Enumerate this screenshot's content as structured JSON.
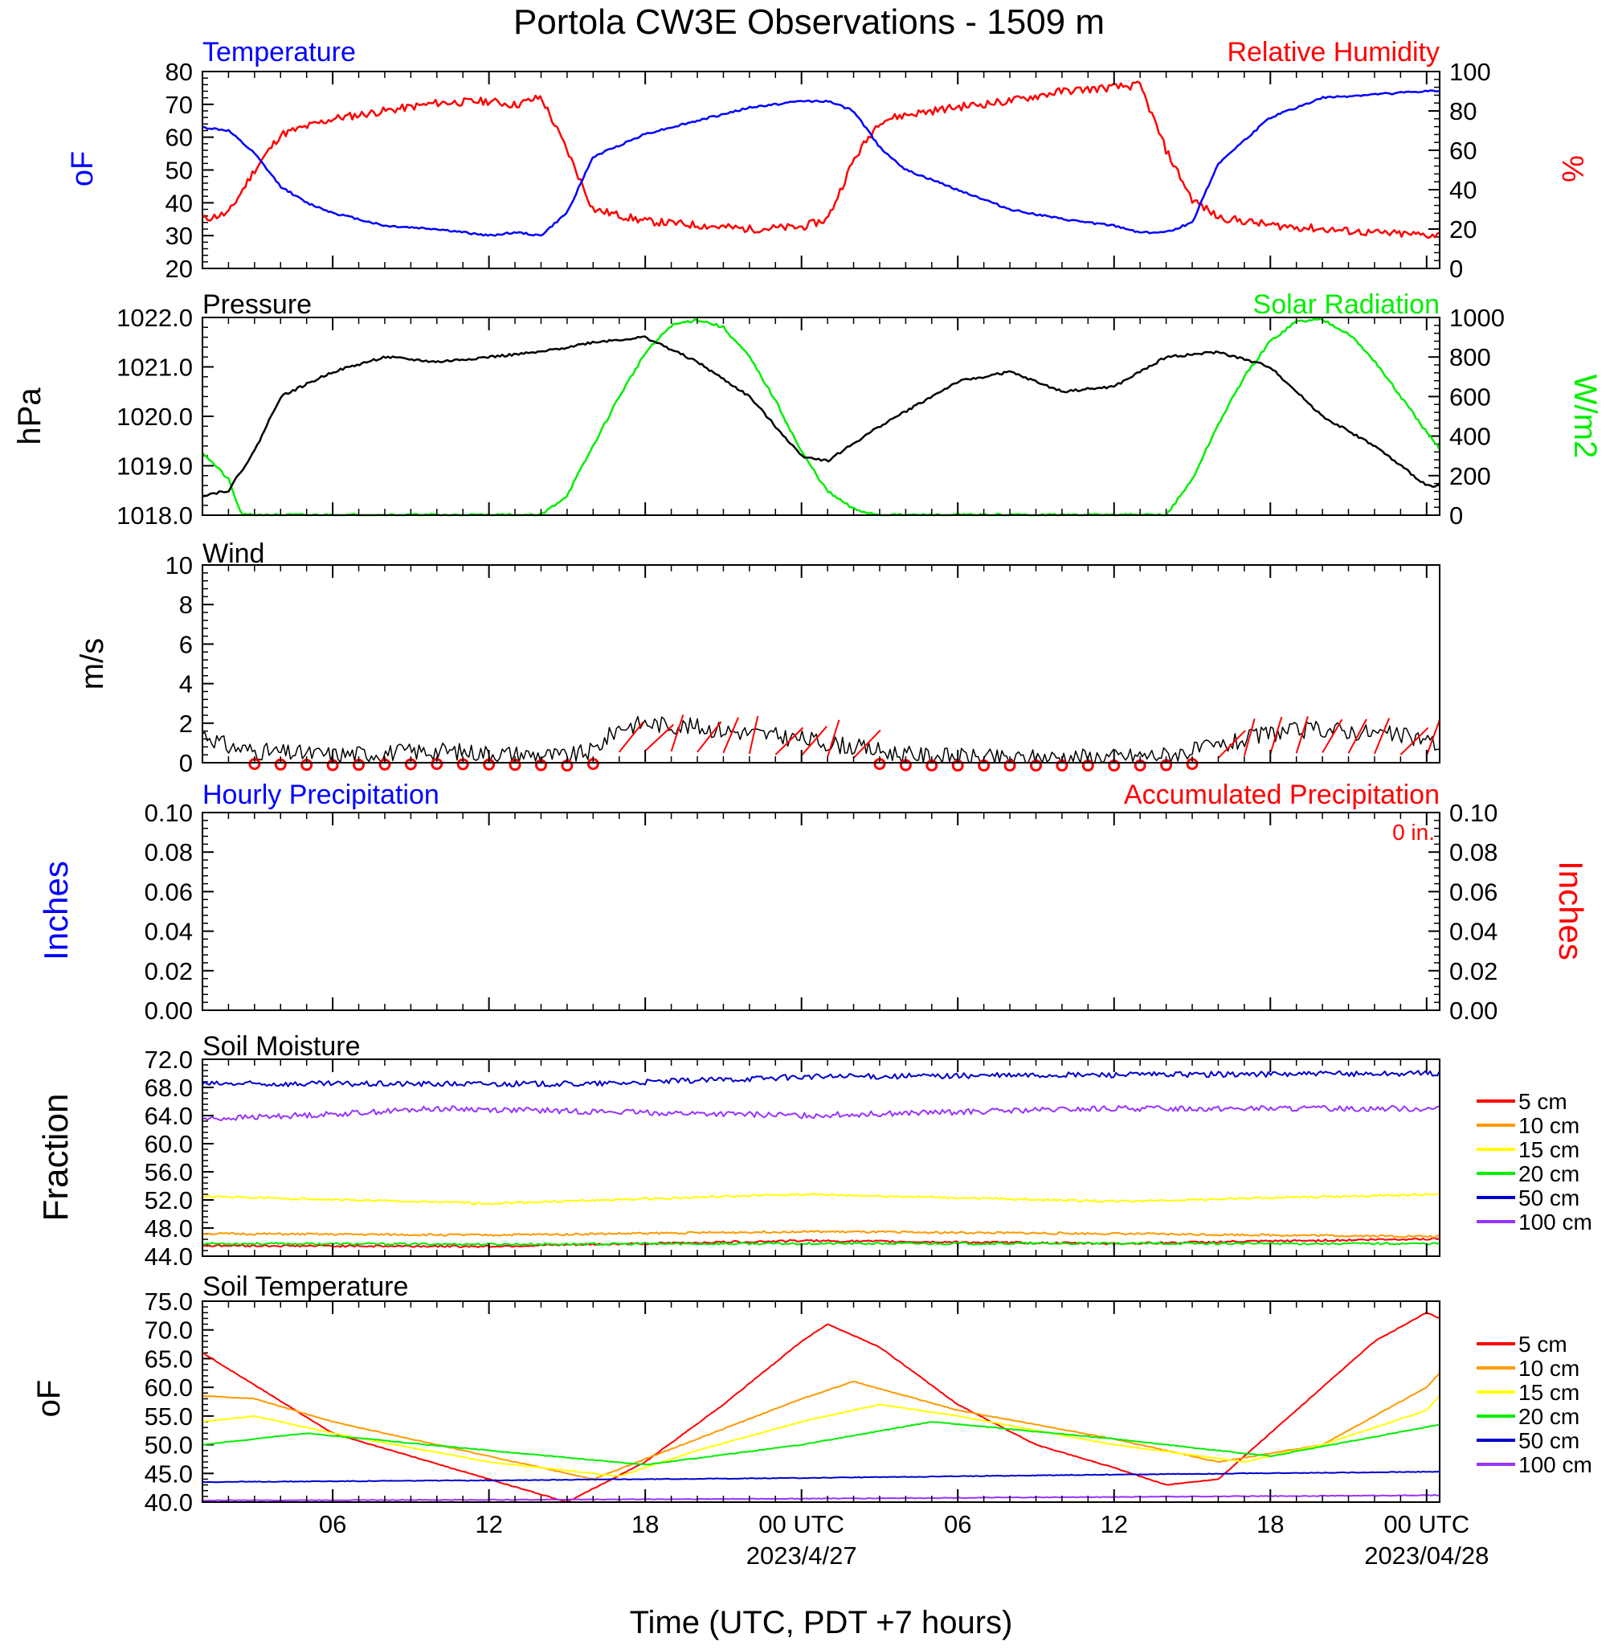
{
  "title": "Portola CW3E Observations - 1509 m",
  "xlabel": "Time (UTC, PDT +7 hours)",
  "x_ticks": [
    "06",
    "12",
    "18",
    "00 UTC",
    "06",
    "12",
    "18",
    "00 UTC"
  ],
  "x_dates": [
    "2023/4/27",
    "2023/04/28"
  ],
  "colors": {
    "temperature": "#0000ff",
    "humidity": "#ff0000",
    "pressure": "#000000",
    "solar": "#00ee00",
    "wind": "#000000",
    "barbs": "#ff0000",
    "hourly_precip": "#0000ff",
    "accum_precip": "#ff0000"
  },
  "panels": {
    "temp_rh": {
      "left_label": "Temperature",
      "right_label": "Relative Humidity",
      "left_unit": "oF",
      "right_unit": "%",
      "left_ticks": [
        "80",
        "70",
        "60",
        "50",
        "40",
        "30",
        "20"
      ],
      "right_ticks": [
        "100",
        "80",
        "60",
        "40",
        "20",
        "0"
      ]
    },
    "pressure_solar": {
      "left_label": "Pressure",
      "right_label": "Solar Radiation",
      "left_unit": "hPa",
      "right_unit": "W/m2",
      "left_ticks": [
        "1022.0",
        "1021.0",
        "1020.0",
        "1019.0",
        "1018.0"
      ],
      "right_ticks": [
        "1000",
        "800",
        "600",
        "400",
        "200",
        "0"
      ]
    },
    "wind": {
      "left_label": "Wind",
      "left_unit": "m/s",
      "left_ticks": [
        "10",
        "8",
        "6",
        "4",
        "2",
        "0"
      ]
    },
    "precip": {
      "left_label": "Hourly Precipitation",
      "right_label": "Accumulated Precipitation",
      "accum_total": "0 in.",
      "left_unit": "Inches",
      "right_unit": "Inches",
      "left_ticks": [
        "0.10",
        "0.08",
        "0.06",
        "0.04",
        "0.02",
        "0.00"
      ],
      "right_ticks": [
        "0.10",
        "0.08",
        "0.06",
        "0.04",
        "0.02",
        "0.00"
      ]
    },
    "soil_moisture": {
      "left_label": "Soil Moisture",
      "left_unit": "Fraction",
      "left_ticks": [
        "72.0",
        "68.0",
        "64.0",
        "60.0",
        "56.0",
        "52.0",
        "48.0",
        "44.0"
      ]
    },
    "soil_temp": {
      "left_label": "Soil Temperature",
      "left_unit": "oF",
      "left_ticks": [
        "75.0",
        "70.0",
        "65.0",
        "60.0",
        "55.0",
        "50.0",
        "45.0",
        "40.0"
      ]
    }
  },
  "legend": [
    {
      "label": "5 cm",
      "color": "#ff0000"
    },
    {
      "label": "10 cm",
      "color": "#ff9900"
    },
    {
      "label": "15 cm",
      "color": "#ffff00"
    },
    {
      "label": "20 cm",
      "color": "#00ee00"
    },
    {
      "label": "50 cm",
      "color": "#0000cc"
    },
    {
      "label": "100 cm",
      "color": "#9933ff"
    }
  ],
  "chart_data": {
    "type": "line",
    "title": "Portola CW3E Observations - 1509 m",
    "xlabel": "Time (UTC, PDT +7 hours)",
    "x_unit": "hours after 2023-04-26 00 UTC",
    "xlim": [
      1,
      48.5
    ],
    "grid": false,
    "subplots": [
      {
        "name": "Temperature / Relative Humidity",
        "ylim": [
          20,
          80
        ],
        "y2lim": [
          0,
          100
        ],
        "series": [
          {
            "name": "Temperature",
            "axis": "left",
            "unit": "F",
            "x": [
              1,
              2,
              3,
              4,
              5,
              6,
              8,
              10,
              12,
              13,
              14,
              15,
              16,
              18,
              20,
              22,
              24,
              25,
              26,
              27,
              28,
              30,
              32,
              34,
              36,
              37,
              38,
              39,
              40,
              42,
              44,
              46,
              48,
              48.5
            ],
            "y": [
              63,
              62,
              55,
              45,
              40,
              37,
              33,
              32,
              30,
              31,
              30,
              37,
              54,
              61,
              65,
              69,
              71,
              71,
              68,
              57,
              50,
              44,
              38,
              35,
              33,
              31,
              31,
              34,
              52,
              66,
              72,
              73,
              74,
              74
            ]
          },
          {
            "name": "Relative Humidity",
            "axis": "right",
            "unit": "%",
            "x": [
              1,
              2,
              3,
              4,
              5,
              6,
              8,
              10,
              12,
              13,
              14,
              15,
              16,
              18,
              20,
              22,
              24,
              25,
              26,
              27,
              28,
              30,
              32,
              34,
              36,
              37,
              38,
              39,
              40,
              42,
              44,
              46,
              48,
              48.5
            ],
            "y": [
              25,
              28,
              50,
              68,
              72,
              76,
              80,
              84,
              85,
              83,
              87,
              60,
              30,
              24,
              22,
              20,
              21,
              25,
              55,
              75,
              78,
              82,
              85,
              90,
              92,
              93,
              60,
              35,
              26,
              22,
              20,
              18,
              17,
              17
            ]
          }
        ]
      },
      {
        "name": "Pressure / Solar Radiation",
        "ylim": [
          1018.0,
          1022.0
        ],
        "y2lim": [
          0,
          1000
        ],
        "series": [
          {
            "name": "Pressure",
            "axis": "left",
            "unit": "hPa",
            "x": [
              1,
              2,
              3,
              4,
              6,
              8,
              10,
              12,
              14,
              16,
              18,
              20,
              22,
              24,
              25,
              27,
              30,
              32,
              34,
              36,
              38,
              40,
              42,
              44,
              46,
              48,
              48.5
            ],
            "y": [
              1018.4,
              1018.5,
              1019.3,
              1020.4,
              1020.9,
              1021.2,
              1021.1,
              1021.2,
              1021.3,
              1021.5,
              1021.6,
              1021.1,
              1020.4,
              1019.2,
              1019.1,
              1019.8,
              1020.7,
              1020.9,
              1020.5,
              1020.6,
              1021.2,
              1021.3,
              1021.0,
              1020.0,
              1019.4,
              1018.6,
              1018.6
            ]
          },
          {
            "name": "Solar Radiation",
            "axis": "right",
            "unit": "W/m2",
            "x": [
              1,
              2,
              2.5,
              14,
              15,
              16,
              17,
              18,
              19,
              20,
              21,
              22,
              23,
              24,
              25,
              26,
              27,
              38,
              39,
              40,
              41,
              42,
              43,
              44,
              45,
              46,
              47,
              48,
              48.5
            ],
            "y": [
              320,
              180,
              0,
              0,
              100,
              350,
              600,
              820,
              960,
              990,
              950,
              800,
              580,
              320,
              120,
              30,
              0,
              0,
              180,
              460,
              700,
              880,
              980,
              990,
              920,
              780,
              600,
              420,
              330
            ]
          }
        ]
      },
      {
        "name": "Wind",
        "ylim": [
          0,
          10
        ],
        "series": [
          {
            "name": "Wind speed",
            "axis": "left",
            "unit": "m/s",
            "x": [
              1,
              2,
              3,
              4,
              6,
              8,
              10,
              12,
              14,
              15,
              16,
              17,
              18,
              20,
              22,
              24,
              26,
              27,
              28,
              30,
              32,
              34,
              36,
              38,
              40,
              42,
              44,
              46,
              48,
              48.5
            ],
            "y": [
              1.5,
              0.8,
              0.6,
              0.5,
              0.4,
              0.5,
              0.6,
              0.5,
              0.4,
              0.3,
              0.6,
              1.8,
              2.0,
              1.8,
              1.5,
              1.2,
              0.8,
              0.6,
              0.4,
              0.3,
              0.2,
              0.3,
              0.3,
              0.4,
              0.8,
              1.5,
              1.7,
              1.5,
              1.2,
              0.8
            ]
          }
        ]
      },
      {
        "name": "Precipitation",
        "ylim": [
          0,
          0.1
        ],
        "y2lim": [
          0,
          0.1
        ],
        "series": [
          {
            "name": "Hourly Precipitation",
            "axis": "left",
            "unit": "in",
            "x": [
              1,
              48.5
            ],
            "y": [
              0,
              0
            ]
          },
          {
            "name": "Accumulated Precipitation",
            "axis": "right",
            "unit": "in",
            "x": [
              1,
              48.5
            ],
            "y": [
              0,
              0
            ]
          }
        ]
      },
      {
        "name": "Soil Moisture",
        "ylim": [
          44.0,
          72.0
        ],
        "series": [
          {
            "name": "5 cm",
            "x": [
              1,
              12,
              24,
              36,
              48.5
            ],
            "y": [
              45.5,
              45.4,
              46.2,
              45.8,
              46.5
            ]
          },
          {
            "name": "10 cm",
            "x": [
              1,
              12,
              24,
              36,
              48.5
            ],
            "y": [
              47.2,
              47.0,
              47.5,
              47.2,
              46.8
            ]
          },
          {
            "name": "15 cm",
            "x": [
              1,
              12,
              24,
              36,
              48.5
            ],
            "y": [
              52.5,
              51.5,
              52.8,
              51.8,
              52.8
            ]
          },
          {
            "name": "20 cm",
            "x": [
              1,
              12,
              24,
              36,
              48.5
            ],
            "y": [
              45.8,
              45.7,
              45.8,
              45.8,
              45.8
            ]
          },
          {
            "name": "50 cm",
            "x": [
              1,
              16,
              24,
              36,
              48.5
            ],
            "y": [
              68.5,
              68.5,
              69.5,
              69.8,
              70.0
            ]
          },
          {
            "name": "100 cm",
            "x": [
              1,
              6,
              10,
              24,
              36,
              48.5
            ],
            "y": [
              63.5,
              64.2,
              65.0,
              64.0,
              65.0,
              65.0
            ]
          }
        ]
      },
      {
        "name": "Soil Temperature",
        "ylim": [
          40.0,
          75.0
        ],
        "series": [
          {
            "name": "5 cm",
            "x": [
              1,
              6,
              12,
              15,
              18,
              21,
              24,
              25,
              27,
              30,
              33,
              36,
              38,
              40,
              42,
              44,
              46,
              48,
              48.5
            ],
            "y": [
              66,
              52,
              44,
              40,
              47,
              57,
              68,
              71,
              67,
              57,
              50,
              46,
              43,
              44,
              52,
              60,
              68,
              73,
              72
            ]
          },
          {
            "name": "10 cm",
            "x": [
              1,
              3,
              6,
              12,
              16,
              20,
              24,
              26,
              30,
              36,
              40,
              44,
              48,
              48.5
            ],
            "y": [
              58.5,
              58,
              54,
              48,
              44,
              51,
              58,
              61,
              56,
              51,
              47,
              50,
              60,
              62.5
            ]
          },
          {
            "name": "15 cm",
            "x": [
              1,
              3,
              6,
              12,
              17,
              20,
              24,
              27,
              30,
              36,
              41,
              44,
              48,
              48.5
            ],
            "y": [
              54,
              55,
              52,
              47,
              44.5,
              49,
              54,
              57,
              55,
              50,
              47,
              50,
              56,
              58.5
            ]
          },
          {
            "name": "20 cm",
            "x": [
              1,
              5,
              12,
              18,
              24,
              29,
              36,
              42,
              48.5
            ],
            "y": [
              50,
              52,
              49,
              46.5,
              50,
              54,
              51,
              48,
              53.5
            ]
          },
          {
            "name": "50 cm",
            "x": [
              1,
              12,
              24,
              36,
              48.5
            ],
            "y": [
              43.5,
              43.8,
              44.2,
              44.8,
              45.3
            ]
          },
          {
            "name": "100 cm",
            "x": [
              1,
              12,
              24,
              36,
              48.5
            ],
            "y": [
              40.3,
              40.4,
              40.6,
              40.9,
              41.2
            ]
          }
        ]
      }
    ]
  }
}
